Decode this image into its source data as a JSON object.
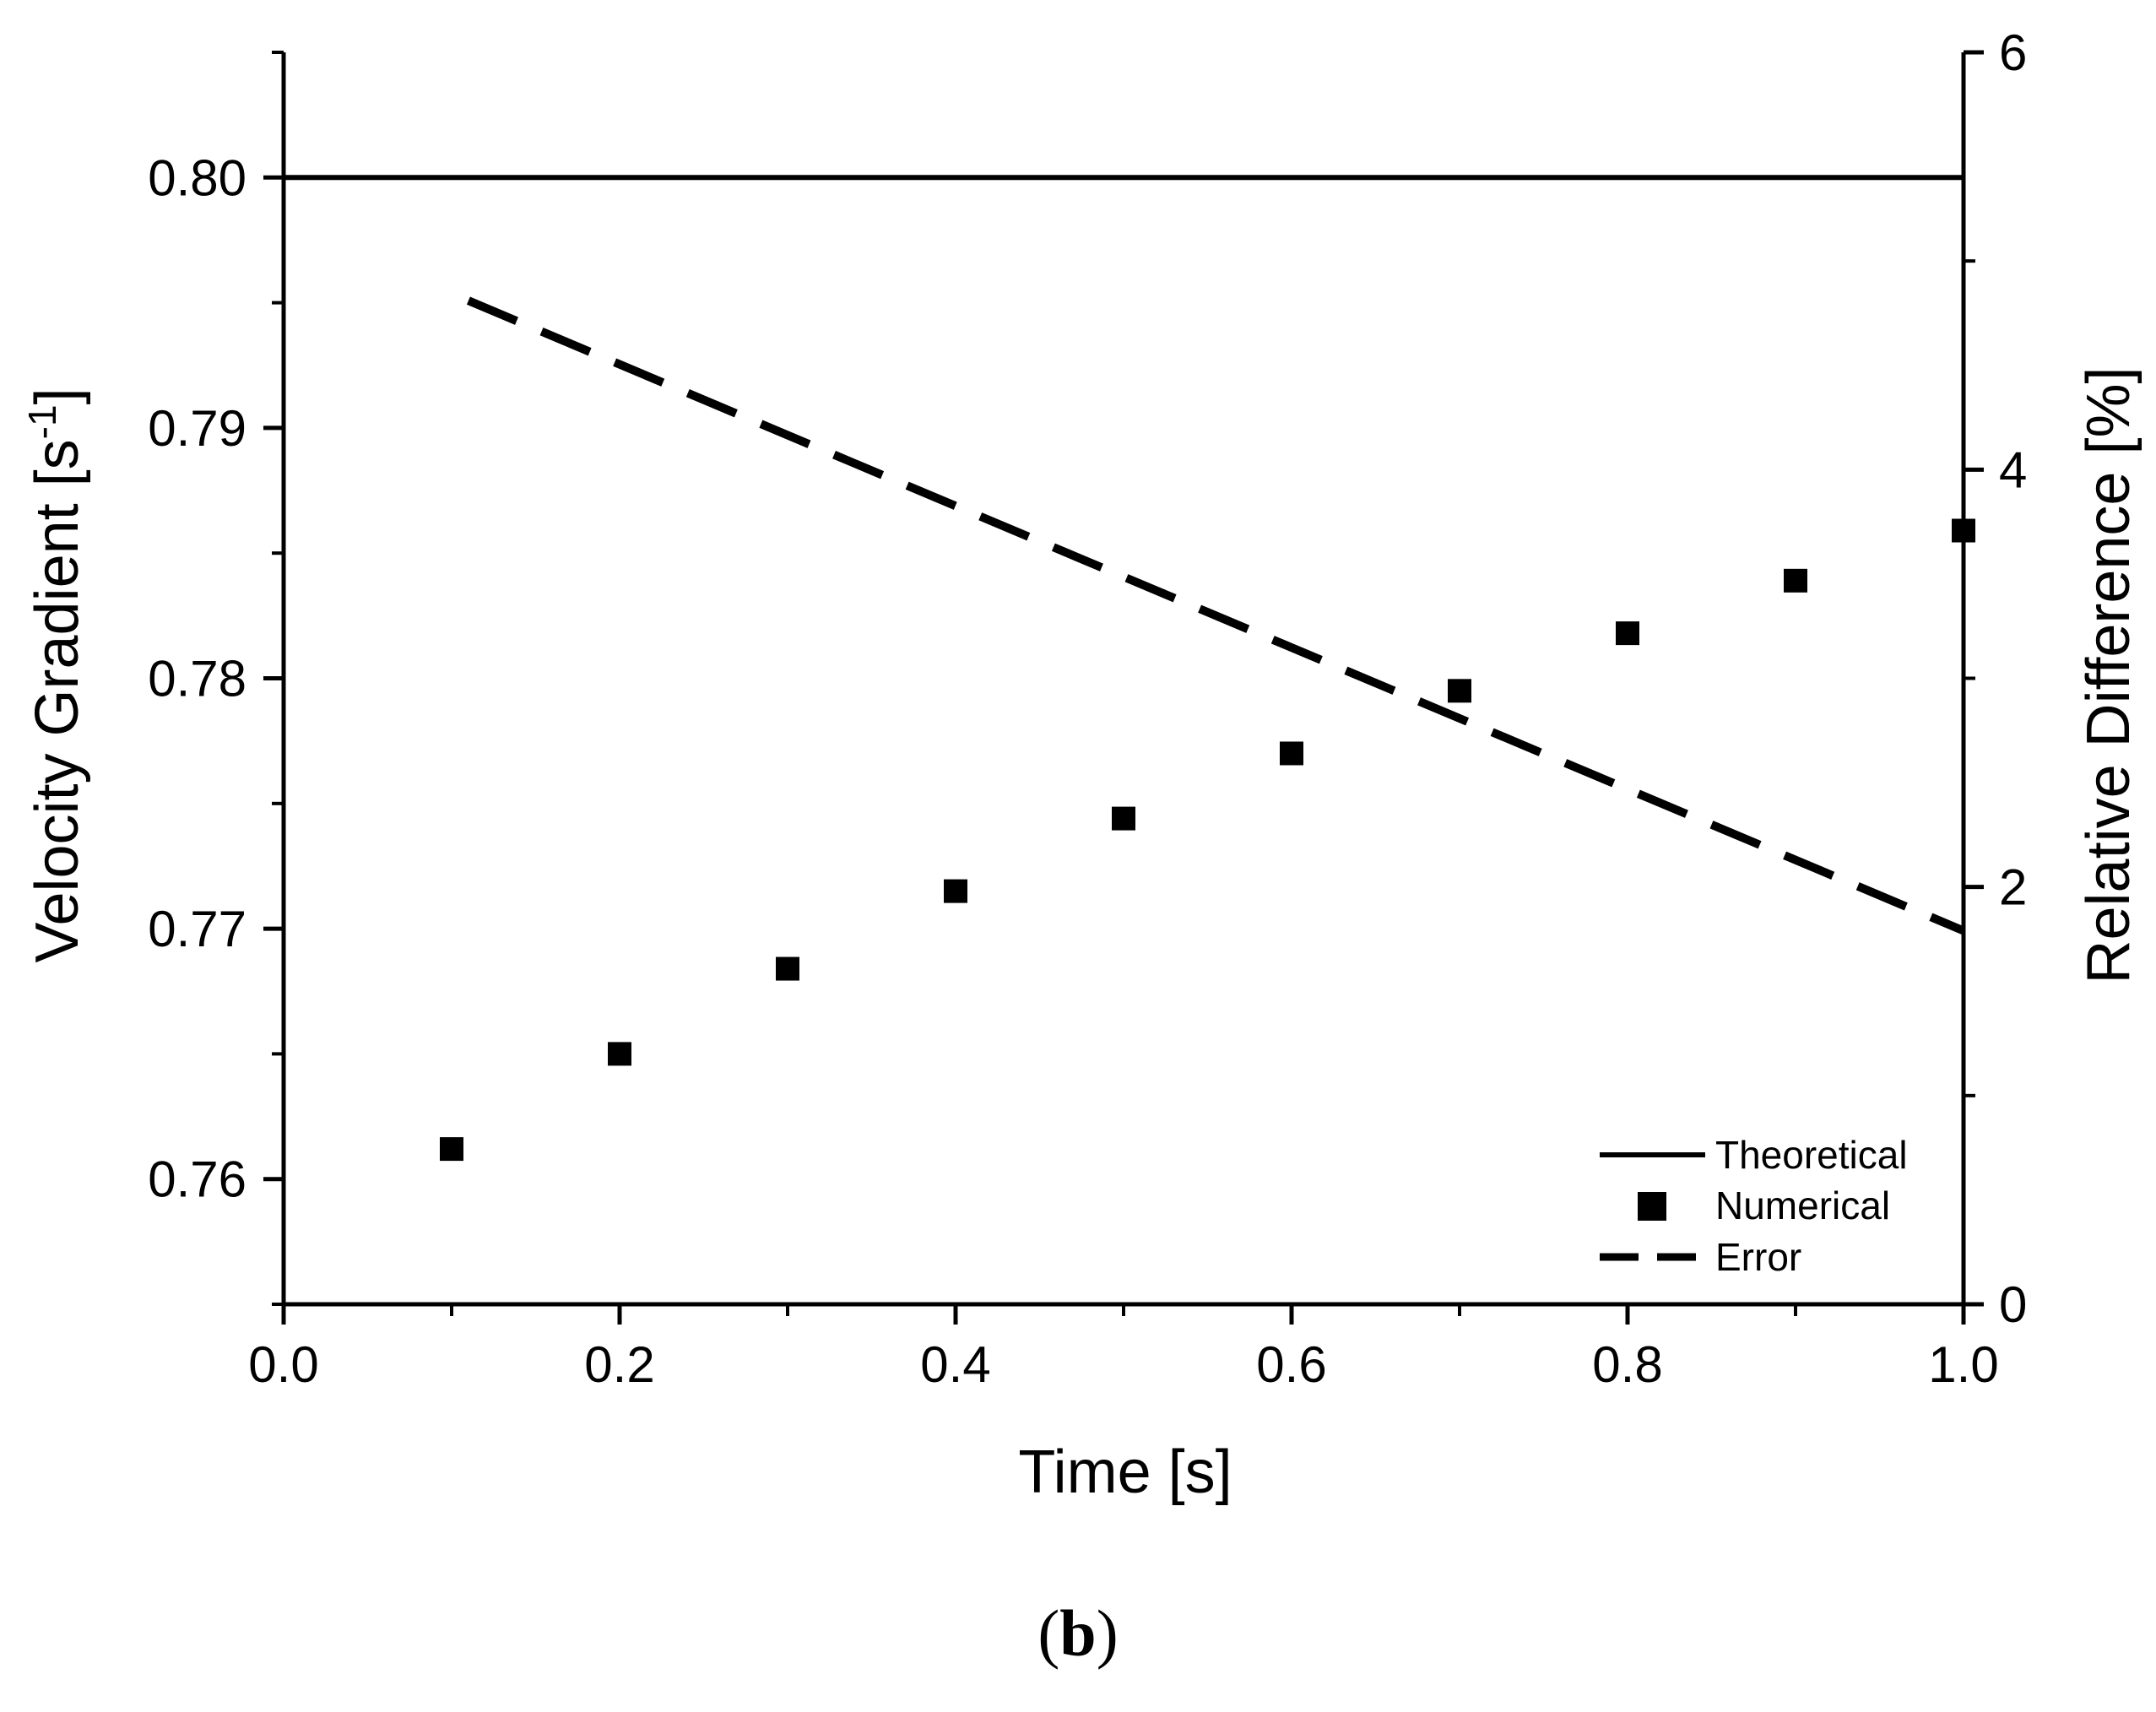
{
  "chart_data": {
    "type": "line",
    "x_axis": {
      "label": "Time [s]",
      "range": [
        0.0,
        1.0
      ],
      "ticks": [
        0.0,
        0.2,
        0.4,
        0.6,
        0.8,
        1.0
      ],
      "tick_labels": [
        "0.0",
        "0.2",
        "0.4",
        "0.6",
        "0.8",
        "1.0"
      ]
    },
    "y_axis_left": {
      "label": "Velocity Gradient [s",
      "label_superscript": "-1",
      "label_close": "]",
      "range": [
        0.755,
        0.805
      ],
      "ticks": [
        0.76,
        0.77,
        0.78,
        0.79,
        0.8
      ],
      "tick_labels": [
        "0.76",
        "0.77",
        "0.78",
        "0.79",
        "0.80"
      ]
    },
    "y_axis_right": {
      "label": "Relative Difference [%]",
      "range": [
        0,
        6
      ],
      "ticks": [
        0,
        2,
        4,
        6
      ],
      "tick_labels": [
        "0",
        "2",
        "4",
        "6"
      ]
    },
    "series": [
      {
        "name": "Theoretical",
        "style": "solid-line",
        "axis": "left",
        "x": [
          0.0,
          1.0
        ],
        "y": [
          0.8,
          0.8
        ]
      },
      {
        "name": "Numerical",
        "style": "square-markers",
        "axis": "left",
        "x": [
          0.1,
          0.2,
          0.3,
          0.4,
          0.5,
          0.6,
          0.7,
          0.8,
          0.9,
          1.0
        ],
        "y": [
          0.7612,
          0.765,
          0.7684,
          0.7715,
          0.7744,
          0.777,
          0.7795,
          0.7818,
          0.7839,
          0.7859
        ]
      },
      {
        "name": "Error",
        "style": "dashed-line",
        "axis": "right",
        "x": [
          0.11,
          1.0
        ],
        "y": [
          4.81,
          1.79
        ]
      }
    ],
    "legend": {
      "position": "bottom-right",
      "entries": [
        "Theoretical",
        "Numerical",
        "Error"
      ]
    },
    "grid": false
  },
  "caption": {
    "open": "(",
    "letter": "b",
    "close": ")"
  },
  "colors": {
    "ink": "#000000",
    "background": "#ffffff"
  }
}
